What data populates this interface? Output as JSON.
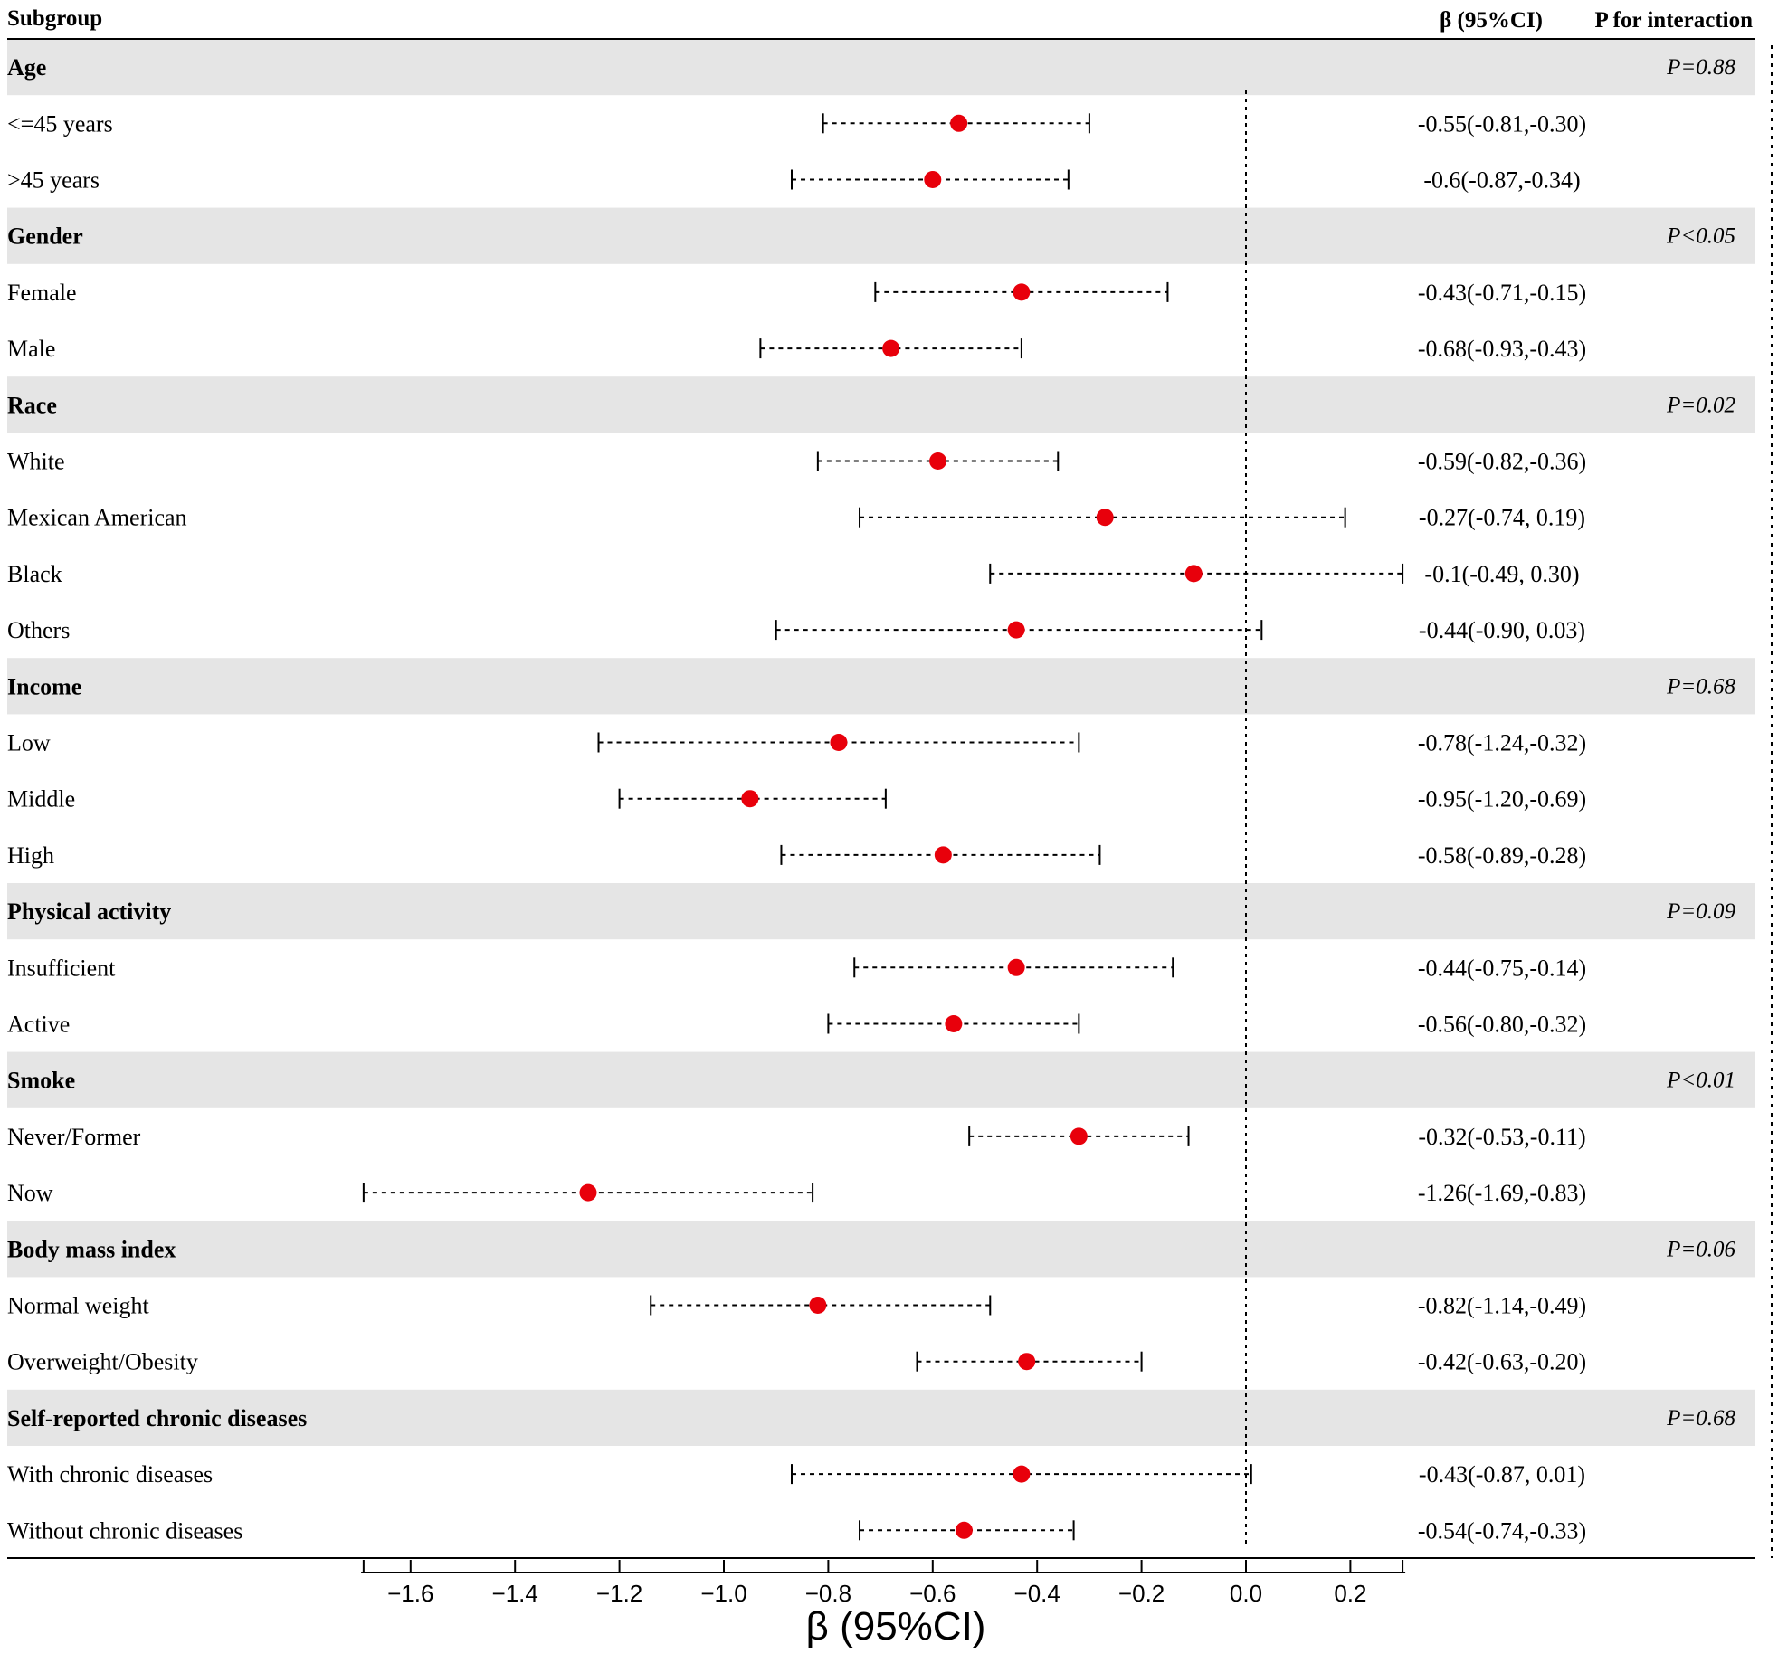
{
  "chart_data": {
    "type": "forest",
    "header": {
      "subgroup": "Subgroup",
      "beta": "β (95%CI)",
      "p_interaction": "P for interaction"
    },
    "xlabel": "β (95%CI)",
    "xlim": [
      -1.7,
      0.3
    ],
    "xticks": [
      -1.6,
      -1.4,
      -1.2,
      -1.0,
      -0.8,
      -0.6,
      -0.4,
      -0.2,
      0.0,
      0.2
    ],
    "xtick_labels": [
      "−1.6",
      "−1.4",
      "−1.2",
      "−1.0",
      "−0.8",
      "−0.6",
      "−0.4",
      "−0.2",
      "0.0",
      "0.2"
    ],
    "reference_line": 0,
    "point_color": "#e8000b",
    "band_color": "#e5e5e5",
    "rows": [
      {
        "kind": "group",
        "label": "Age",
        "p": "P=0.88"
      },
      {
        "kind": "sub",
        "label": "<=45 years",
        "beta": -0.55,
        "lo": -0.81,
        "hi": -0.3,
        "text": "-0.55(-0.81,-0.30)"
      },
      {
        "kind": "sub",
        "label": ">45 years",
        "beta": -0.6,
        "lo": -0.87,
        "hi": -0.34,
        "text": "-0.6(-0.87,-0.34)"
      },
      {
        "kind": "group",
        "label": "Gender",
        "p": "P<0.05"
      },
      {
        "kind": "sub",
        "label": "Female",
        "beta": -0.43,
        "lo": -0.71,
        "hi": -0.15,
        "text": "-0.43(-0.71,-0.15)"
      },
      {
        "kind": "sub",
        "label": "Male",
        "beta": -0.68,
        "lo": -0.93,
        "hi": -0.43,
        "text": "-0.68(-0.93,-0.43)"
      },
      {
        "kind": "group",
        "label": "Race",
        "p": "P=0.02"
      },
      {
        "kind": "sub",
        "label": "White",
        "beta": -0.59,
        "lo": -0.82,
        "hi": -0.36,
        "text": "-0.59(-0.82,-0.36)"
      },
      {
        "kind": "sub",
        "label": "Mexican American",
        "beta": -0.27,
        "lo": -0.74,
        "hi": 0.19,
        "text": "-0.27(-0.74, 0.19)"
      },
      {
        "kind": "sub",
        "label": "Black",
        "beta": -0.1,
        "lo": -0.49,
        "hi": 0.3,
        "text": "-0.1(-0.49, 0.30)"
      },
      {
        "kind": "sub",
        "label": "Others",
        "beta": -0.44,
        "lo": -0.9,
        "hi": 0.03,
        "text": "-0.44(-0.90, 0.03)"
      },
      {
        "kind": "group",
        "label": "Income",
        "p": "P=0.68"
      },
      {
        "kind": "sub",
        "label": "Low",
        "beta": -0.78,
        "lo": -1.24,
        "hi": -0.32,
        "text": "-0.78(-1.24,-0.32)"
      },
      {
        "kind": "sub",
        "label": "Middle",
        "beta": -0.95,
        "lo": -1.2,
        "hi": -0.69,
        "text": "-0.95(-1.20,-0.69)"
      },
      {
        "kind": "sub",
        "label": "High",
        "beta": -0.58,
        "lo": -0.89,
        "hi": -0.28,
        "text": "-0.58(-0.89,-0.28)"
      },
      {
        "kind": "group",
        "label": "Physical activity",
        "p": "P=0.09"
      },
      {
        "kind": "sub",
        "label": "Insufficient",
        "beta": -0.44,
        "lo": -0.75,
        "hi": -0.14,
        "text": "-0.44(-0.75,-0.14)"
      },
      {
        "kind": "sub",
        "label": "Active",
        "beta": -0.56,
        "lo": -0.8,
        "hi": -0.32,
        "text": "-0.56(-0.80,-0.32)"
      },
      {
        "kind": "group",
        "label": "Smoke",
        "p": "P<0.01"
      },
      {
        "kind": "sub",
        "label": "Never/Former",
        "beta": -0.32,
        "lo": -0.53,
        "hi": -0.11,
        "text": "-0.32(-0.53,-0.11)"
      },
      {
        "kind": "sub",
        "label": "Now",
        "beta": -1.26,
        "lo": -1.69,
        "hi": -0.83,
        "text": "-1.26(-1.69,-0.83)"
      },
      {
        "kind": "group",
        "label": "Body mass index",
        "p": "P=0.06"
      },
      {
        "kind": "sub",
        "label": "Normal weight",
        "beta": -0.82,
        "lo": -1.14,
        "hi": -0.49,
        "text": "-0.82(-1.14,-0.49)"
      },
      {
        "kind": "sub",
        "label": "Overweight/Obesity",
        "beta": -0.42,
        "lo": -0.63,
        "hi": -0.2,
        "text": "-0.42(-0.63,-0.20)"
      },
      {
        "kind": "group",
        "label": "Self-reported chronic diseases",
        "p": "P=0.68"
      },
      {
        "kind": "sub",
        "label": "With chronic diseases",
        "beta": -0.43,
        "lo": -0.87,
        "hi": 0.01,
        "text": "-0.43(-0.87, 0.01)"
      },
      {
        "kind": "sub",
        "label": "Without chronic diseases",
        "beta": -0.54,
        "lo": -0.74,
        "hi": -0.33,
        "text": "-0.54(-0.74,-0.33)"
      }
    ]
  }
}
